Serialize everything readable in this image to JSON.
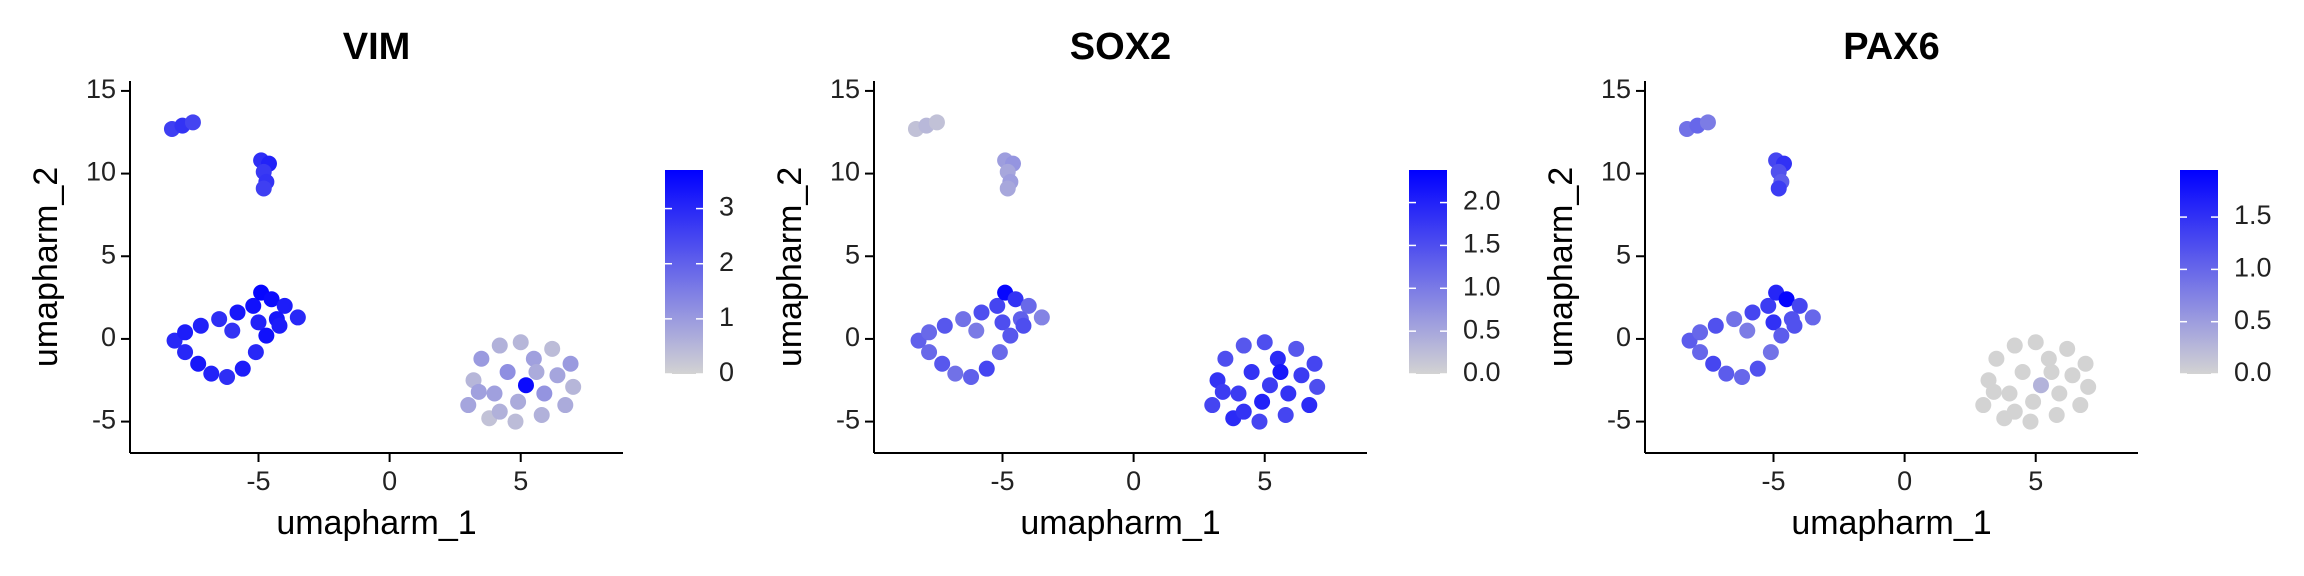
{
  "chart_data": [
    {
      "type": "scatter",
      "title": "VIM",
      "x_label": "umapharm_1",
      "y_label": "umapharm_2",
      "x": [
        -8.3,
        -7.9,
        -7.5,
        -4.9,
        -4.6,
        -4.8,
        -4.7,
        -4.8,
        -8.2,
        -7.8,
        -7.2,
        -6.5,
        -5.8,
        -5.2,
        -4.9,
        -4.5,
        -4.0,
        -3.5,
        -4.3,
        -5.0,
        -4.7,
        -5.1,
        -5.6,
        -6.2,
        -6.8,
        -7.3,
        -7.8,
        -6.0,
        -4.2,
        3.0,
        3.2,
        3.5,
        3.8,
        4.0,
        4.2,
        4.5,
        4.8,
        4.9,
        5.0,
        5.2,
        5.5,
        5.8,
        5.9,
        6.2,
        6.4,
        6.7,
        7.0,
        6.9,
        4.2,
        3.4,
        5.6
      ],
      "values": [
        12.7,
        12.9,
        13.1,
        10.8,
        10.6,
        10.1,
        9.5,
        9.1,
        -0.1,
        0.4,
        0.8,
        1.2,
        1.6,
        2.0,
        2.8,
        2.4,
        2.0,
        1.3,
        1.2,
        1.0,
        0.2,
        -0.8,
        -1.8,
        -2.3,
        -2.1,
        -1.5,
        -0.8,
        0.5,
        0.8,
        -4.0,
        -2.5,
        -1.2,
        -4.8,
        -3.3,
        -0.4,
        -2.0,
        -5.0,
        -3.8,
        -0.2,
        -2.8,
        -1.2,
        -4.6,
        -3.3,
        -0.6,
        -2.2,
        -4.0,
        -2.9,
        -1.5,
        -4.4,
        -3.2,
        -2.0
      ],
      "color_values": [
        2.6,
        2.8,
        2.5,
        2.9,
        3.1,
        2.7,
        2.8,
        2.6,
        3.0,
        3.2,
        3.1,
        2.9,
        3.3,
        3.4,
        3.6,
        3.5,
        3.2,
        3.0,
        3.3,
        3.1,
        3.4,
        3.0,
        3.2,
        2.9,
        3.1,
        3.3,
        3.0,
        2.8,
        3.2,
        0.8,
        0.5,
        1.0,
        0.3,
        0.9,
        0.6,
        1.2,
        0.4,
        0.7,
        0.5,
        3.5,
        0.9,
        0.6,
        1.1,
        0.4,
        0.8,
        0.7,
        0.5,
        1.0,
        0.6,
        0.9,
        0.7
      ],
      "xlim": [
        -9.9,
        8.9
      ],
      "ylim": [
        -6.9,
        15.6
      ],
      "xticks": [
        -5,
        0,
        5
      ],
      "yticks": [
        -5,
        0,
        5,
        10,
        15
      ],
      "colorbar": {
        "lim": [
          0,
          3.7
        ],
        "ticks": [
          0,
          1,
          2,
          3
        ],
        "low": "#d3d3d3",
        "high": "#0000ff"
      }
    },
    {
      "type": "scatter",
      "title": "SOX2",
      "x_label": "umapharm_1",
      "y_label": "umapharm_2",
      "x": [
        -8.3,
        -7.9,
        -7.5,
        -4.9,
        -4.6,
        -4.8,
        -4.7,
        -4.8,
        -8.2,
        -7.8,
        -7.2,
        -6.5,
        -5.8,
        -5.2,
        -4.9,
        -4.5,
        -4.0,
        -3.5,
        -4.3,
        -5.0,
        -4.7,
        -5.1,
        -5.6,
        -6.2,
        -6.8,
        -7.3,
        -7.8,
        -6.0,
        -4.2,
        3.0,
        3.2,
        3.5,
        3.8,
        4.0,
        4.2,
        4.5,
        4.8,
        4.9,
        5.0,
        5.2,
        5.5,
        5.8,
        5.9,
        6.2,
        6.4,
        6.7,
        7.0,
        6.9,
        4.2,
        3.4,
        5.6
      ],
      "values": [
        12.7,
        12.9,
        13.1,
        10.8,
        10.6,
        10.1,
        9.5,
        9.1,
        -0.1,
        0.4,
        0.8,
        1.2,
        1.6,
        2.0,
        2.8,
        2.4,
        2.0,
        1.3,
        1.2,
        1.0,
        0.2,
        -0.8,
        -1.8,
        -2.3,
        -2.1,
        -1.5,
        -0.8,
        0.5,
        0.8,
        -4.0,
        -2.5,
        -1.2,
        -4.8,
        -3.3,
        -0.4,
        -2.0,
        -5.0,
        -3.8,
        -0.2,
        -2.8,
        -1.2,
        -4.6,
        -3.3,
        -0.6,
        -2.2,
        -4.0,
        -2.9,
        -1.5,
        -4.4,
        -3.2,
        -2.0
      ],
      "color_values": [
        0.2,
        0.3,
        0.2,
        0.6,
        0.7,
        0.5,
        0.6,
        0.5,
        1.3,
        1.2,
        1.4,
        1.1,
        1.5,
        1.6,
        2.3,
        1.8,
        1.2,
        0.9,
        1.3,
        1.5,
        1.4,
        1.2,
        1.6,
        1.3,
        1.1,
        1.4,
        1.2,
        1.0,
        1.5,
        1.6,
        1.8,
        1.5,
        1.9,
        1.7,
        1.4,
        1.8,
        1.6,
        2.0,
        1.5,
        1.7,
        1.9,
        1.6,
        1.8,
        1.4,
        1.7,
        1.9,
        1.5,
        1.6,
        1.8,
        1.7,
        2.1
      ],
      "xlim": [
        -9.9,
        8.9
      ],
      "ylim": [
        -6.9,
        15.6
      ],
      "xticks": [
        -5,
        0,
        5
      ],
      "yticks": [
        -5,
        0,
        5,
        10,
        15
      ],
      "colorbar": {
        "lim": [
          0,
          2.38
        ],
        "ticks": [
          {
            "value": 0,
            "label": "0.0"
          },
          {
            "value": 0.5,
            "label": "0.5"
          },
          {
            "value": 1,
            "label": "1.0"
          },
          {
            "value": 1.5,
            "label": "1.5"
          },
          {
            "value": 2,
            "label": "2.0"
          }
        ],
        "low": "#d3d3d3",
        "high": "#0000ff"
      }
    },
    {
      "type": "scatter",
      "title": "PAX6",
      "x_label": "umapharm_1",
      "y_label": "umapharm_2",
      "x": [
        -8.3,
        -7.9,
        -7.5,
        -4.9,
        -4.6,
        -4.8,
        -4.7,
        -4.8,
        -8.2,
        -7.8,
        -7.2,
        -6.5,
        -5.8,
        -5.2,
        -4.9,
        -4.5,
        -4.0,
        -3.5,
        -4.3,
        -5.0,
        -4.7,
        -5.1,
        -5.6,
        -6.2,
        -6.8,
        -7.3,
        -7.8,
        -6.0,
        -4.2,
        3.0,
        3.2,
        3.5,
        3.8,
        4.0,
        4.2,
        4.5,
        4.8,
        4.9,
        5.0,
        5.2,
        5.5,
        5.8,
        5.9,
        6.2,
        6.4,
        6.7,
        7.0,
        6.9,
        4.2,
        3.4,
        5.6
      ],
      "values": [
        12.7,
        12.9,
        13.1,
        10.8,
        10.6,
        10.1,
        9.5,
        9.1,
        -0.1,
        0.4,
        0.8,
        1.2,
        1.6,
        2.0,
        2.8,
        2.4,
        2.0,
        1.3,
        1.2,
        1.0,
        0.2,
        -0.8,
        -1.8,
        -2.3,
        -2.1,
        -1.5,
        -0.8,
        0.5,
        0.8,
        -4.0,
        -2.5,
        -1.2,
        -4.8,
        -3.3,
        -0.4,
        -2.0,
        -5.0,
        -3.8,
        -0.2,
        -2.8,
        -1.2,
        -4.6,
        -3.3,
        -0.6,
        -2.2,
        -4.0,
        -2.9,
        -1.5,
        -4.4,
        -3.2,
        -2.0
      ],
      "color_values": [
        0.9,
        1.0,
        0.8,
        1.3,
        1.5,
        1.2,
        1.1,
        1.4,
        1.1,
        1.0,
        1.2,
        0.9,
        1.3,
        1.4,
        1.6,
        1.9,
        1.3,
        1.0,
        1.2,
        1.5,
        1.1,
        0.9,
        1.2,
        1.0,
        1.1,
        1.3,
        1.0,
        0.8,
        1.2,
        0,
        0,
        0,
        0,
        0,
        0,
        0,
        0,
        0,
        0,
        0.3,
        0,
        0,
        0,
        0,
        0,
        0,
        0,
        0,
        0,
        0,
        0
      ],
      "xlim": [
        -9.9,
        8.9
      ],
      "ylim": [
        -6.9,
        15.6
      ],
      "xticks": [
        -5,
        0,
        5
      ],
      "yticks": [
        -5,
        0,
        5,
        10,
        15
      ],
      "colorbar": {
        "lim": [
          0,
          1.95
        ],
        "ticks": [
          {
            "value": 0,
            "label": "0.0"
          },
          {
            "value": 0.5,
            "label": "0.5"
          },
          {
            "value": 1,
            "label": "1.0"
          },
          {
            "value": 1.5,
            "label": "1.5"
          }
        ],
        "low": "#d3d3d3",
        "high": "#0000ff"
      }
    }
  ]
}
